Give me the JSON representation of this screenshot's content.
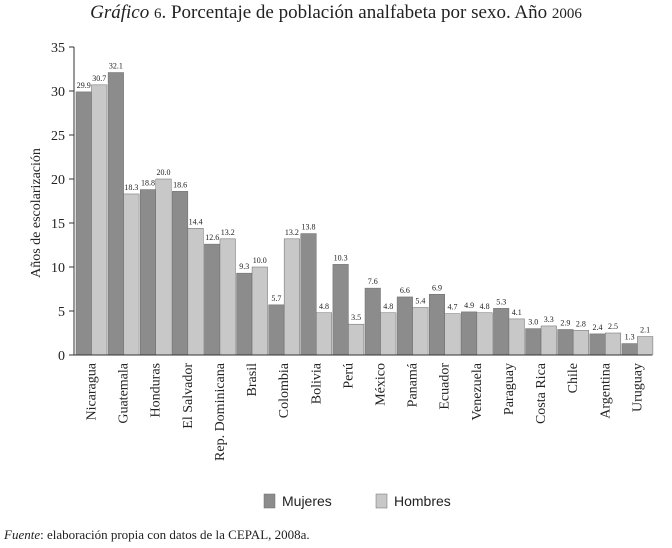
{
  "title": {
    "prefix": "Gráfico",
    "number": "6",
    "text": ". Porcentaje de población analfabeta por sexo. Año ",
    "year": "2006"
  },
  "source": {
    "label": "Fuente",
    "text": ": elaboración propia con datos de la CEPAL, 2008a."
  },
  "chart_data": {
    "type": "bar",
    "title": "Gráfico 6. Porcentaje de población analfabeta por sexo. Año 2006",
    "ylabel": "Años de escolarización",
    "xlabel": "",
    "ylim": [
      0,
      35
    ],
    "yticks": [
      0,
      5,
      10,
      15,
      20,
      25,
      30,
      35
    ],
    "grid": false,
    "legend": "bottom-center",
    "categories": [
      "Nicaragua",
      "Guatemala",
      "Honduras",
      "El Salvador",
      "Rep. Dominicana",
      "Brasil",
      "Colombia",
      "Bolivia",
      "Perú",
      "México",
      "Panamá",
      "Ecuador",
      "Venezuela",
      "Paraguay",
      "Costa Rica",
      "Chile",
      "Argentina",
      "Uruguay"
    ],
    "series": [
      {
        "name": "Mujeres",
        "color": "#8c8c8c",
        "values": [
          29.9,
          32.1,
          18.8,
          18.6,
          12.6,
          9.3,
          5.7,
          13.8,
          10.3,
          7.6,
          6.6,
          6.9,
          4.9,
          5.3,
          3.0,
          2.9,
          2.4,
          1.3
        ]
      },
      {
        "name": "Hombres",
        "color": "#c8c8c8",
        "values": [
          30.7,
          18.3,
          20.0,
          14.4,
          13.2,
          10.0,
          13.2,
          4.8,
          3.5,
          4.8,
          5.4,
          4.7,
          4.8,
          4.1,
          3.3,
          2.8,
          2.5,
          2.1
        ]
      }
    ]
  }
}
